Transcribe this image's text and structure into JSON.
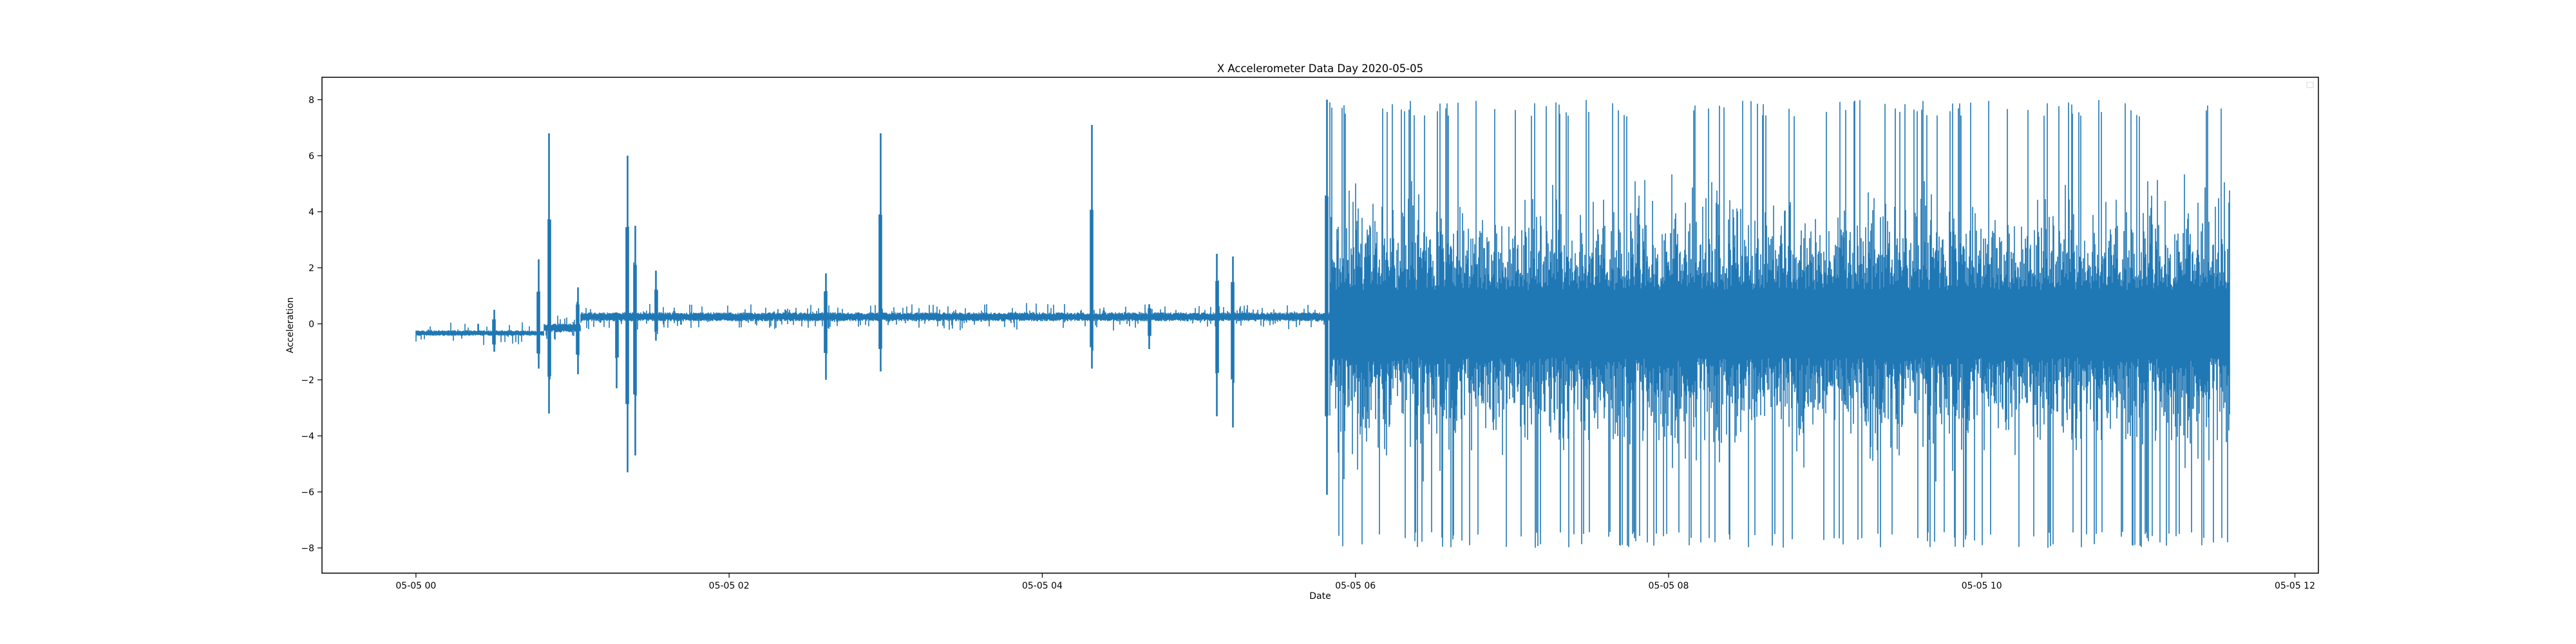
{
  "chart_data": {
    "type": "line",
    "title": "X Accelerometer Data Day 2020-05-05",
    "xlabel": "Date",
    "ylabel": "Acceleration",
    "x_ticks": [
      "05-05 00",
      "05-05 02",
      "05-05 04",
      "05-05 06",
      "05-05 08",
      "05-05 10",
      "05-05 12"
    ],
    "y_ticks": [
      "-8",
      "-6",
      "-4",
      "-2",
      "0",
      "2",
      "4",
      "6",
      "8"
    ],
    "xlim": [
      "2020-05-04 23:24",
      "2020-05-05 12:09"
    ],
    "ylim": [
      -8.9,
      8.8
    ],
    "grid": false,
    "legend": "top-right (empty)",
    "series_color": "#1f77b4",
    "series": [
      {
        "x_start": "2020-05-05 00:00",
        "x_end": "2020-05-05 11:35",
        "baseline_segments": [
          {
            "from": "2020-05-05 00:00",
            "to": "2020-05-05 00:49",
            "level": -0.33,
            "noise": 0.05
          },
          {
            "from": "2020-05-05 00:49",
            "to": "2020-05-05 01:03",
            "level": -0.15,
            "noise": 0.08
          },
          {
            "from": "2020-05-05 01:03",
            "to": "2020-05-05 05:50",
            "level": 0.25,
            "noise": 0.08
          },
          {
            "from": "2020-05-05 05:50",
            "to": "2020-05-05 11:35",
            "level": 0.0,
            "noise": 1.6,
            "max": 8.0,
            "min": -8.0
          }
        ],
        "spikes": [
          {
            "x": "2020-05-05 00:30",
            "max": 0.5,
            "min": -1.0
          },
          {
            "x": "2020-05-05 00:47",
            "max": 2.3,
            "min": -1.6
          },
          {
            "x": "2020-05-05 00:51",
            "max": 6.8,
            "min": -3.2
          },
          {
            "x": "2020-05-05 01:02",
            "max": 1.3,
            "min": -1.8
          },
          {
            "x": "2020-05-05 01:17",
            "max": 0.3,
            "min": -2.3
          },
          {
            "x": "2020-05-05 01:21",
            "max": 6.0,
            "min": -5.3
          },
          {
            "x": "2020-05-05 01:24",
            "max": 3.5,
            "min": -4.7
          },
          {
            "x": "2020-05-05 01:32",
            "max": 1.9,
            "min": -0.6
          },
          {
            "x": "2020-05-05 02:37",
            "max": 1.8,
            "min": -2.0
          },
          {
            "x": "2020-05-05 02:58",
            "max": 6.8,
            "min": -1.7
          },
          {
            "x": "2020-05-05 04:19",
            "max": 7.1,
            "min": -1.6
          },
          {
            "x": "2020-05-05 04:41",
            "max": 0.7,
            "min": -0.9
          },
          {
            "x": "2020-05-05 05:07",
            "max": 2.5,
            "min": -3.3
          },
          {
            "x": "2020-05-05 05:13",
            "max": 2.4,
            "min": -3.7
          },
          {
            "x": "2020-05-05 05:49",
            "max": 8.0,
            "min": -6.1
          }
        ]
      }
    ]
  }
}
